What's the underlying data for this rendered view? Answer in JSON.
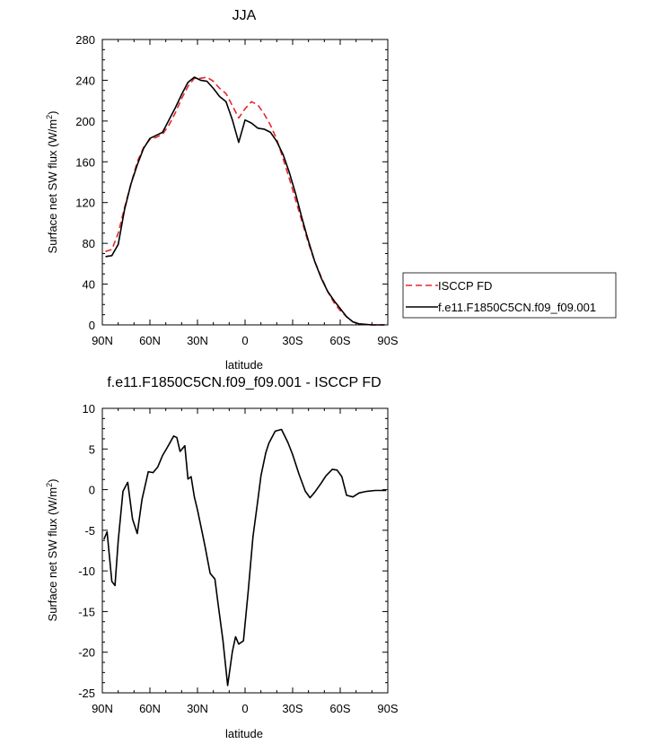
{
  "chart_data": [
    {
      "type": "line",
      "title": "JJA",
      "xlabel": "latitude",
      "ylabel": "Surface net SW flux (W/m",
      "ylabel_sup": "2",
      "ylabel_end": ")",
      "xlim": [
        90,
        -90
      ],
      "ylim": [
        0,
        280
      ],
      "x_tick_labels": [
        "90N",
        "60N",
        "30N",
        "0",
        "30S",
        "60S",
        "90S"
      ],
      "y_ticks": [
        0,
        40,
        80,
        120,
        160,
        200,
        240,
        280
      ],
      "legend_position": "right",
      "series": [
        {
          "name": "ISCCP FD",
          "color": "#e8262b",
          "dash": "dashed",
          "x": [
            88,
            84,
            80,
            76,
            72,
            68,
            64,
            60,
            56,
            52,
            48,
            44,
            40,
            36,
            32,
            28,
            24,
            20,
            16,
            12,
            8,
            4,
            0,
            -4,
            -8,
            -12,
            -16,
            -20,
            -24,
            -28,
            -32,
            -36,
            -40,
            -44,
            -48,
            -52,
            -56,
            -60,
            -64,
            -68,
            -72,
            -76,
            -80,
            -84,
            -88
          ],
          "y": [
            72,
            74,
            90,
            115,
            138,
            160,
            174,
            182,
            184,
            187,
            196,
            208,
            222,
            234,
            242,
            242,
            243,
            239,
            232,
            227,
            215,
            203,
            212,
            219,
            216,
            207,
            196,
            182,
            163,
            143,
            122,
            101,
            80,
            62,
            47,
            33,
            22,
            14,
            8,
            3,
            1,
            0.5,
            0,
            0,
            0
          ]
        },
        {
          "name": "f.e11.F1850C5CN.f09_f09.001",
          "color": "#000000",
          "dash": "solid",
          "x": [
            88,
            84,
            80,
            76,
            72,
            68,
            64,
            60,
            56,
            52,
            48,
            44,
            40,
            36,
            32,
            28,
            24,
            20,
            16,
            12,
            8,
            4,
            0,
            -4,
            -8,
            -12,
            -16,
            -20,
            -24,
            -28,
            -32,
            -36,
            -40,
            -44,
            -48,
            -52,
            -56,
            -60,
            -64,
            -68,
            -72,
            -76,
            -80,
            -84,
            -88
          ],
          "y": [
            67,
            68,
            79,
            113,
            138,
            157,
            173,
            183,
            186,
            189,
            201,
            213,
            226,
            238,
            243,
            240,
            239,
            232,
            224,
            219,
            201,
            179,
            201,
            198,
            193,
            192,
            189,
            180,
            167,
            149,
            128,
            104,
            82,
            62,
            46,
            33,
            24,
            16,
            8,
            3,
            1,
            0.5,
            0,
            0,
            0
          ]
        }
      ]
    },
    {
      "type": "line",
      "title": "f.e11.F1850C5CN.f09_f09.001 - ISCCP FD",
      "xlabel": "latitude",
      "ylabel": "Surface net SW flux (W/m",
      "ylabel_sup": "2",
      "ylabel_end": ")",
      "xlim": [
        90,
        -90
      ],
      "ylim": [
        -25,
        10
      ],
      "x_tick_labels": [
        "90N",
        "60N",
        "30N",
        "0",
        "30S",
        "60S",
        "90S"
      ],
      "y_ticks": [
        -25,
        -20,
        -15,
        -10,
        -5,
        0,
        5,
        10
      ],
      "series": [
        {
          "color": "#000000",
          "x": [
            89,
            87,
            84,
            82,
            80,
            77,
            74,
            71,
            68,
            65,
            61,
            58,
            55,
            52,
            49,
            45,
            43,
            41,
            38,
            36,
            34,
            32,
            30,
            27,
            25,
            22,
            19,
            17,
            14,
            11,
            8,
            6,
            4,
            1,
            -2,
            -5,
            -8,
            -10,
            -13,
            -15,
            -19,
            -23,
            -27,
            -30,
            -34,
            -38,
            -41,
            -44,
            -48,
            -51,
            -55,
            -58,
            -61,
            -64,
            -68,
            -72,
            -77,
            -82,
            -89
          ],
          "y": [
            -6.1,
            -5.2,
            -11.3,
            -11.8,
            -6.3,
            -0.2,
            0.9,
            -3.6,
            -5.4,
            -1.2,
            2.2,
            2.1,
            2.8,
            4.2,
            5.2,
            6.6,
            6.4,
            4.7,
            5.4,
            1.3,
            1.6,
            -0.9,
            -2.5,
            -5.3,
            -7.2,
            -10.3,
            -11.0,
            -14.1,
            -18.5,
            -24.1,
            -19.9,
            -18.1,
            -19.0,
            -18.6,
            -12.5,
            -5.8,
            -1.4,
            1.7,
            4.5,
            5.7,
            7.2,
            7.4,
            5.8,
            4.3,
            1.9,
            -0.2,
            -1.0,
            -0.3,
            0.8,
            1.7,
            2.5,
            2.4,
            1.6,
            -0.7,
            -0.9,
            -0.4,
            -0.2,
            -0.1,
            -0.1
          ]
        }
      ]
    }
  ]
}
